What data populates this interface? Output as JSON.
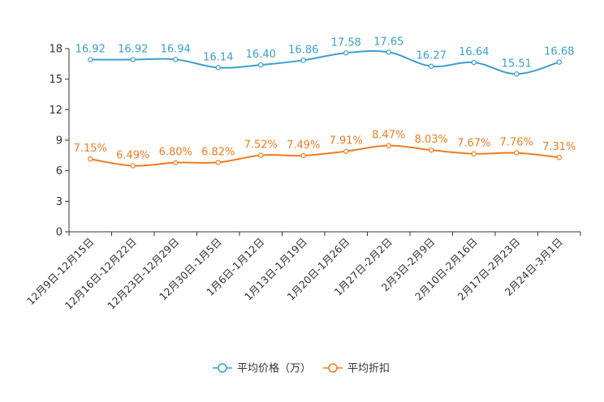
{
  "chart_data": {
    "type": "line",
    "categories": [
      "12月9日-12月15日",
      "12月16日-12月22日",
      "12月23日-12月29日",
      "12月30日-1月5日",
      "1月6日-1月12日",
      "1月13日-1月19日",
      "1月20日-1月26日",
      "1月27日-2月2日",
      "2月3日-2月9日",
      "2月10日-2月16日",
      "2月17日-2月23日",
      "2月24日-3月1日"
    ],
    "series": [
      {
        "name": "平均价格（万）",
        "color": "#3b9ed0",
        "values": [
          16.92,
          16.92,
          16.94,
          16.14,
          16.4,
          16.86,
          17.58,
          17.65,
          16.27,
          16.64,
          15.51,
          16.68
        ],
        "labels": [
          "16.92",
          "16.92",
          "16.94",
          "16.14",
          "16.40",
          "16.86",
          "17.58",
          "17.65",
          "16.27",
          "16.64",
          "15.51",
          "16.68"
        ]
      },
      {
        "name": "平均折扣",
        "color": "#f07c1e",
        "values": [
          7.15,
          6.49,
          6.8,
          6.82,
          7.52,
          7.49,
          7.91,
          8.47,
          8.03,
          7.67,
          7.76,
          7.31
        ],
        "labels": [
          "7.15%",
          "6.49%",
          "6.80%",
          "6.82%",
          "7.52%",
          "7.49%",
          "7.91%",
          "8.47%",
          "8.03%",
          "7.67%",
          "7.76%",
          "7.31%"
        ]
      }
    ],
    "ylim": [
      0,
      18
    ],
    "yticks": [
      0,
      3,
      6,
      9,
      12,
      15,
      18
    ],
    "grid": false,
    "legend_position": "bottom-center"
  }
}
